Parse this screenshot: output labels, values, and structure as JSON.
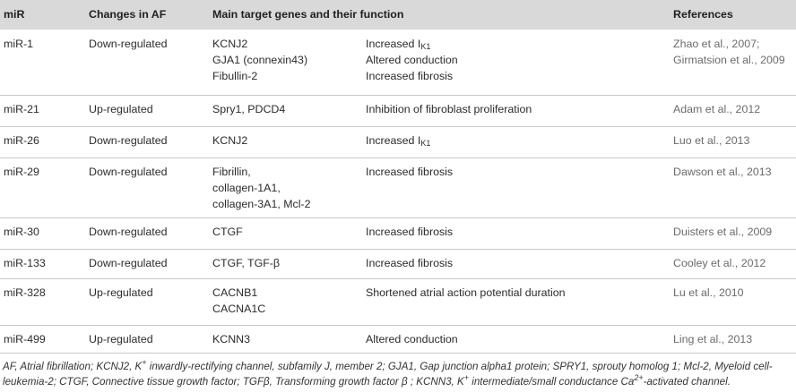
{
  "headers": [
    "miR",
    "Changes in AF",
    "Main target genes and their function",
    "References"
  ],
  "rows": [
    {
      "mir": "miR-1",
      "change": "Down-regulated",
      "genes": [
        "KCNJ2",
        "GJA1 (connexin43)",
        "Fibullin-2"
      ],
      "functions": [
        {
          "pre": "Increased I",
          "sub": "K1"
        },
        {
          "pre": "Altered conduction"
        },
        {
          "pre": "Increased fibrosis"
        }
      ],
      "refs": [
        "Zhao et al., 2007;",
        "Girmatsion et al., 2009"
      ]
    },
    {
      "mir": "miR-21",
      "change": "Up-regulated",
      "genes": [
        "Spry1, PDCD4"
      ],
      "functions": [
        {
          "pre": "Inhibition of fibroblast proliferation"
        }
      ],
      "refs": [
        "Adam et al., 2012"
      ]
    },
    {
      "mir": "miR-26",
      "change": "Down-regulated",
      "genes": [
        "KCNJ2"
      ],
      "functions": [
        {
          "pre": "Increased I",
          "sub": "K1"
        }
      ],
      "refs": [
        "Luo et al., 2013"
      ]
    },
    {
      "mir": "miR-29",
      "change": "Down-regulated",
      "genes": [
        "Fibrillin,",
        "collagen-1A1,",
        "collagen-3A1, Mcl-2"
      ],
      "functions": [
        {
          "pre": "Increased fibrosis"
        }
      ],
      "refs": [
        "Dawson et al., 2013"
      ]
    },
    {
      "mir": "miR-30",
      "change": "Down-regulated",
      "genes": [
        "CTGF"
      ],
      "functions": [
        {
          "pre": "Increased fibrosis"
        }
      ],
      "refs": [
        "Duisters et al., 2009"
      ]
    },
    {
      "mir": "miR-133",
      "change": "Down-regulated",
      "genes": [
        "CTGF, TGF-β"
      ],
      "functions": [
        {
          "pre": "Increased fibrosis"
        }
      ],
      "refs": [
        "Cooley et al., 2012"
      ]
    },
    {
      "mir": "miR-328",
      "change": "Up-regulated",
      "genes": [
        "CACNB1",
        "CACNA1C"
      ],
      "functions": [
        {
          "pre": "Shortened atrial action potential duration"
        }
      ],
      "refs": [
        "Lu et al., 2010"
      ]
    },
    {
      "mir": "miR-499",
      "change": "Up-regulated",
      "genes": [
        "KCNN3"
      ],
      "functions": [
        {
          "pre": "Altered conduction"
        }
      ],
      "refs": [
        "Ling et al., 2013"
      ]
    }
  ],
  "footnote": {
    "p1": "AF, Atrial fibrillation; KCNJ2, K",
    "s1": "+",
    "p2": " inwardly-rectifying channel, subfamily J, member 2; GJA1, Gap junction alpha1 protein; SPRY1, sprouty homolog 1; Mcl-2, Myeloid cell-leukemia-2; CTGF, Connective tissue growth factor; TGFβ, Transforming growth factor β ; KCNN3, K",
    "s2": "+",
    "p3": " intermediate/small conductance Ca",
    "s3": "2+",
    "p4": "-activated channel."
  }
}
